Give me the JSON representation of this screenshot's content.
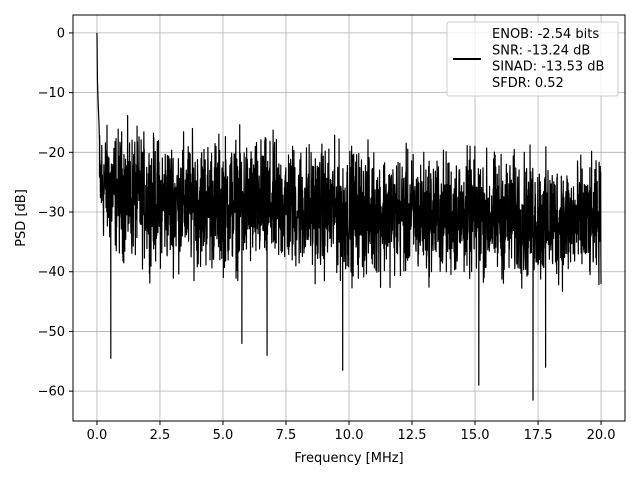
{
  "chart_data": {
    "type": "line",
    "xlabel": "Frequency [MHz]",
    "ylabel": "PSD [dB]",
    "xlim": [
      -0.95,
      20.95
    ],
    "ylim": [
      -65,
      3
    ],
    "xticks": [
      0.0,
      2.5,
      5.0,
      7.5,
      10.0,
      12.5,
      15.0,
      17.5,
      20.0
    ],
    "xtick_labels": [
      "0.0",
      "2.5",
      "5.0",
      "7.5",
      "10.0",
      "12.5",
      "15.0",
      "17.5",
      "20.0"
    ],
    "yticks": [
      0,
      -10,
      -20,
      -30,
      -40,
      -50,
      -60
    ],
    "ytick_labels": [
      "0",
      "−10",
      "−20",
      "−30",
      "−40",
      "−50",
      "−60"
    ],
    "grid": true,
    "legend_position": "top-right",
    "line_color": "#000000",
    "series": [
      {
        "name": "ENOB: -2.54 bits\nSNR: -13.24 dB\nSINAD: -13.53 dB\nSFDR: 0.52",
        "x": [
          0.0,
          0.02,
          0.05,
          0.08,
          0.1,
          0.15,
          0.2,
          0.25,
          0.3,
          0.4,
          0.5,
          0.55,
          0.6,
          0.8,
          1.0,
          1.5,
          2.0,
          2.5,
          3.0,
          3.5,
          4.0,
          4.5,
          5.0,
          5.5,
          5.75,
          6.0,
          6.5,
          6.75,
          7.0,
          7.5,
          8.0,
          8.5,
          9.0,
          9.75,
          10.0,
          10.5,
          11.0,
          11.5,
          12.0,
          12.5,
          13.0,
          13.5,
          14.0,
          14.5,
          15.0,
          15.15,
          15.5,
          16.0,
          16.5,
          17.0,
          17.3,
          17.5,
          17.8,
          18.0,
          18.5,
          19.0,
          19.5,
          20.0
        ],
        "values": [
          0.0,
          -8.0,
          -12.0,
          -15.0,
          -18.0,
          -20.0,
          -24.0,
          -26.0,
          -28.0,
          -30.0,
          -32.0,
          -54.5,
          -28.0,
          -27.0,
          -27.0,
          -27.5,
          -27.0,
          -27.5,
          -27.0,
          -27.5,
          -27.5,
          -28.0,
          -27.5,
          -28.0,
          -52.0,
          -28.0,
          -28.0,
          -54.0,
          -28.0,
          -28.0,
          -28.0,
          -28.0,
          -28.5,
          -56.5,
          -28.0,
          -28.0,
          -28.0,
          -28.0,
          -28.0,
          -28.0,
          -28.5,
          -28.0,
          -28.5,
          -28.0,
          -28.5,
          -59.0,
          -28.0,
          -28.5,
          -28.0,
          -28.5,
          -61.5,
          -28.5,
          -56.0,
          -28.5,
          -28.5,
          -29.0,
          -28.5,
          -29.0
        ],
        "noise_envelope": {
          "x": [
            0.1,
            0.5,
            1.0,
            2.5,
            5.0,
            7.5,
            10.0,
            12.5,
            15.0,
            17.5,
            20.0
          ],
          "upper": [
            -13.0,
            -14.0,
            -14.0,
            -15.5,
            -15.0,
            -16.0,
            -17.0,
            -18.0,
            -18.0,
            -18.5,
            -20.0
          ],
          "lower": [
            -37.0,
            -38.0,
            -40.0,
            -41.0,
            -42.0,
            -42.0,
            -43.0,
            -43.0,
            -43.0,
            -44.0,
            -44.0
          ]
        }
      }
    ]
  }
}
